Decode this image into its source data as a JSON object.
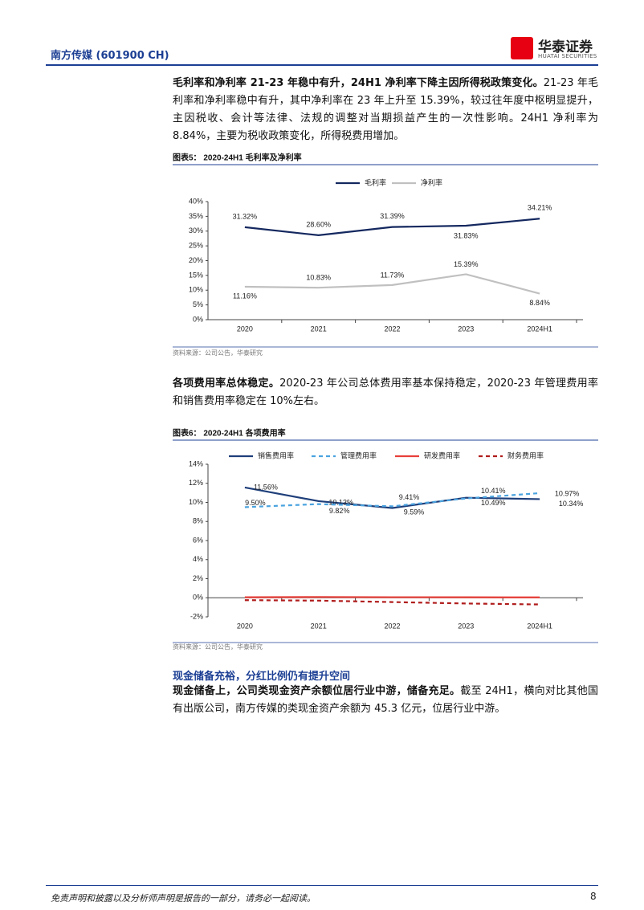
{
  "header": {
    "stock": "南方传媒 (601900 CH)",
    "brand": "华泰证券",
    "brand_en": "HUATAI SECURITIES"
  },
  "paragraphs": [
    {
      "lead": "毛利率和净利率 21-23 年稳中有升，24H1 净利率下降主因所得税政策变化。",
      "body": "21-23 年毛利率和净利率稳中有升，其中净利率在 23 年上升至 15.39%，较过往年度中枢明显提升，主因税收、会计等法律、法规的调整对当期损益产生的一次性影响。24H1 净利率为 8.84%，主要为税收政策变化，所得税费用增加。"
    },
    {
      "lead": "各项费用率总体稳定。",
      "body": "2020-23 年公司总体费用率基本保持稳定，2020-23 年管理费用率和销售费用率稳定在 10%左右。"
    },
    {
      "lead": "现金储备上，公司类现金资产余额位居行业中游，储备充足。",
      "body": "截至 24H1，横向对比其他国有出版公司，南方传媒的类现金资产余额为 45.3 亿元，位居行业中游。"
    }
  ],
  "section_heading": "现金储备充裕，分红比例仍有提升空间",
  "footer": {
    "disclaimer": "免责声明和披露以及分析师声明是报告的一部分，请务必一起阅读。",
    "page": "8"
  },
  "chart_data": [
    {
      "type": "line",
      "title": "图表5： 2020-24H1 毛利率及净利率",
      "source": "资料来源：公司公告，华泰研究",
      "categories": [
        "2020",
        "2021",
        "2022",
        "2023",
        "2024H1"
      ],
      "series": [
        {
          "name": "毛利率",
          "color": "#14285f",
          "line_style": "solid",
          "values": [
            31.32,
            28.6,
            31.39,
            31.83,
            34.21
          ],
          "value_labels": [
            "31.32%",
            "28.60%",
            "31.39%",
            "31.83%",
            "34.21%"
          ]
        },
        {
          "name": "净利率",
          "color": "#c0c0c0",
          "line_style": "solid",
          "values": [
            11.16,
            10.83,
            11.73,
            15.39,
            8.84
          ],
          "value_labels": [
            "11.16%",
            "10.83%",
            "11.73%",
            "15.39%",
            "8.84%"
          ]
        }
      ],
      "ylim": [
        0,
        40
      ],
      "yticks": [
        {
          "value": 0,
          "label": "0%"
        },
        {
          "value": 5,
          "label": "5%"
        },
        {
          "value": 10,
          "label": "10%"
        },
        {
          "value": 15,
          "label": "15%"
        },
        {
          "value": 20,
          "label": "20%"
        },
        {
          "value": 25,
          "label": "25%"
        },
        {
          "value": 30,
          "label": "30%"
        },
        {
          "value": 35,
          "label": "35%"
        },
        {
          "value": 40,
          "label": "40%"
        }
      ],
      "grid": false
    },
    {
      "type": "line",
      "title": "图表6： 2020-24H1 各项费用率",
      "source": "资料来源：公司公告，华泰研究",
      "categories": [
        "2020",
        "2021",
        "2022",
        "2023",
        "2024H1"
      ],
      "series": [
        {
          "name": "销售费用率",
          "color": "#1f3f7a",
          "line_style": "solid",
          "values": [
            11.56,
            10.13,
            9.41,
            10.49,
            10.34
          ],
          "value_labels": [
            "11.56%",
            "10.13%",
            "9.41%",
            "10.49%",
            "10.34%"
          ]
        },
        {
          "name": "管理费用率",
          "color": "#4aa3df",
          "line_style": "dashed",
          "values": [
            9.5,
            9.82,
            9.59,
            10.41,
            10.97
          ],
          "value_labels": [
            "9.50%",
            "9.82%",
            "9.59%",
            "10.41%",
            "10.97%"
          ]
        },
        {
          "name": "研发费用率",
          "color": "#e8403a",
          "line_style": "solid",
          "values": [
            0.05,
            0.08,
            0.06,
            0.05,
            0.04
          ]
        },
        {
          "name": "财务费用率",
          "color": "#b01c1c",
          "line_style": "dashed",
          "values": [
            -0.25,
            -0.3,
            -0.45,
            -0.6,
            -0.7
          ]
        }
      ],
      "ylim": [
        -2,
        14
      ],
      "yticks": [
        {
          "value": -2,
          "label": "-2%"
        },
        {
          "value": 0,
          "label": "0%"
        },
        {
          "value": 2,
          "label": "2%"
        },
        {
          "value": 4,
          "label": "4%"
        },
        {
          "value": 6,
          "label": "6%"
        },
        {
          "value": 8,
          "label": "8%"
        },
        {
          "value": 10,
          "label": "10%"
        },
        {
          "value": 12,
          "label": "12%"
        },
        {
          "value": 14,
          "label": "14%"
        }
      ],
      "grid": false
    }
  ]
}
